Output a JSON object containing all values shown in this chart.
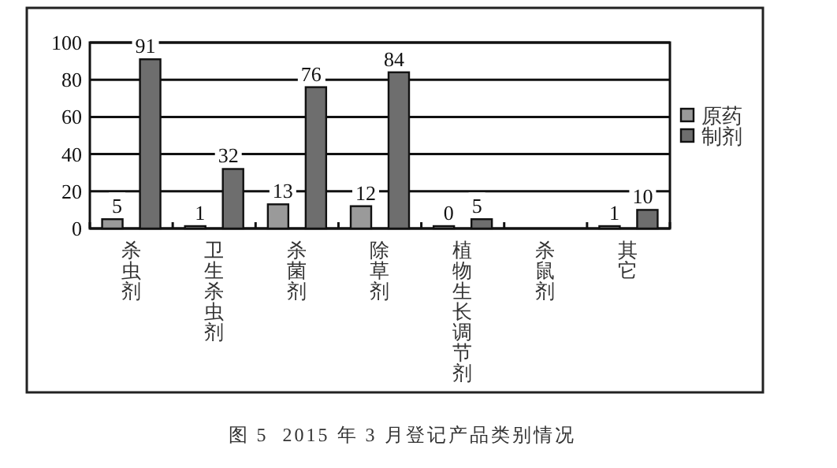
{
  "chart_data": {
    "type": "bar",
    "categories": [
      "杀虫剂",
      "卫生杀虫剂",
      "杀菌剂",
      "除草剂",
      "植物生长调节剂",
      "杀鼠剂",
      "其它"
    ],
    "series": [
      {
        "name": "原药",
        "color": "#9a9a9a",
        "values": [
          5,
          1,
          13,
          12,
          0,
          null,
          1
        ]
      },
      {
        "name": "制剂",
        "color": "#6e6e6e",
        "values": [
          91,
          32,
          76,
          84,
          5,
          null,
          10
        ]
      }
    ],
    "ylim": [
      0,
      100
    ],
    "yticks": [
      0,
      20,
      40,
      60,
      80,
      100
    ],
    "grid": "y",
    "legend": "right",
    "data_labels": true,
    "annotations": [
      "图 5  2015 年 3 月登记产品类别情况"
    ]
  }
}
